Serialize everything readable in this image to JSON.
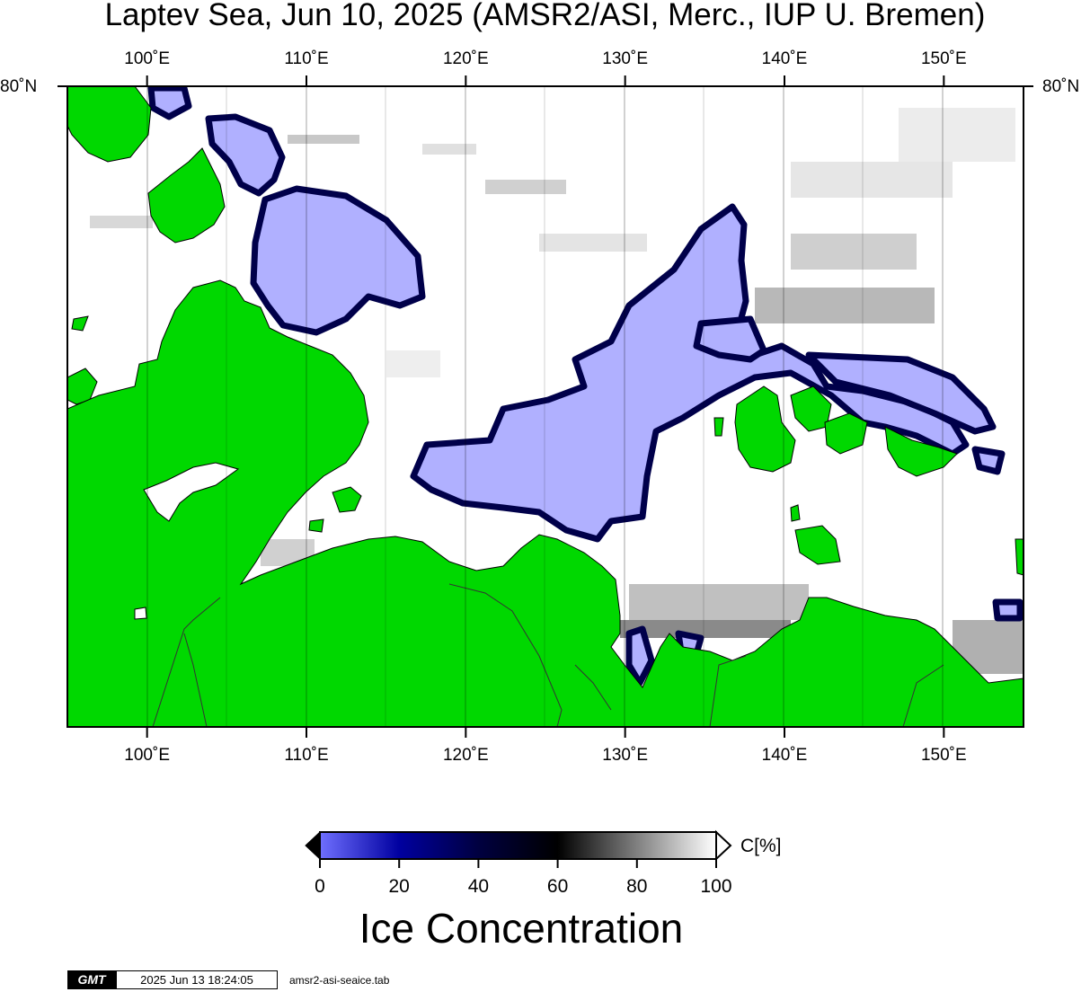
{
  "title": "Laptev Sea, Jun 10, 2025 (AMSR2/ASI, Merc., IUP U. Bremen)",
  "map": {
    "projection": "Mercator",
    "region": "Laptev Sea",
    "lon_range": [
      95,
      155
    ],
    "lon_ticks": [
      {
        "lon": 100,
        "label": "100˚E"
      },
      {
        "lon": 110,
        "label": "110˚E"
      },
      {
        "lon": 120,
        "label": "120˚E"
      },
      {
        "lon": 130,
        "label": "130˚E"
      },
      {
        "lon": 140,
        "label": "140˚E"
      },
      {
        "lon": 150,
        "label": "150˚E"
      }
    ],
    "lat_tick_label": "80˚N",
    "colors": {
      "land": "#00d800",
      "open_water": "#ffffff",
      "low_concentration": "#b0b0ff",
      "frame": "#000000"
    }
  },
  "colorbar": {
    "ticks": [
      "0",
      "20",
      "40",
      "60",
      "80",
      "100"
    ],
    "unit": "C[%]",
    "gradient_stops": [
      "#6f6fff",
      "#0000a0",
      "#000040",
      "#000000",
      "#808080",
      "#ffffff"
    ],
    "label": "Ice Concentration"
  },
  "footer": {
    "logo": "GMT",
    "timestamp": "2025 Jun 13 18:24:05",
    "file": "amsr2-asi-seaice.tab"
  }
}
